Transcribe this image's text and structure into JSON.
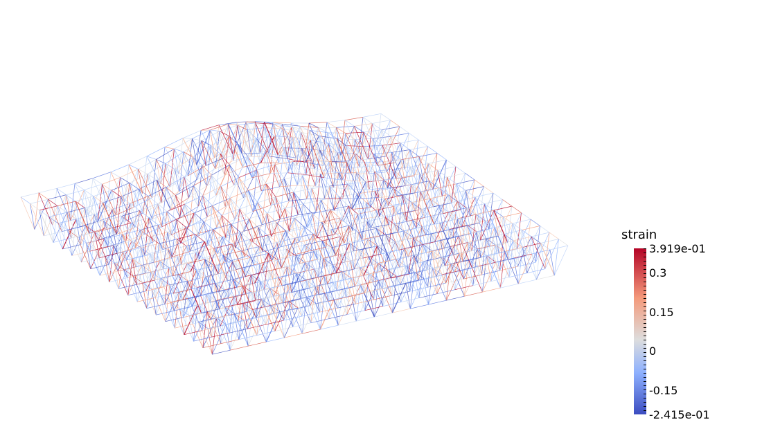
{
  "legend": {
    "title": "strain",
    "max_label": "3.919e-01",
    "min_label": "-2.415e-01",
    "ticks": [
      {
        "label": "0.3",
        "value": 0.3
      },
      {
        "label": "0.15",
        "value": 0.15
      },
      {
        "label": "0",
        "value": 0
      },
      {
        "label": "-0.15",
        "value": -0.15
      }
    ],
    "range": [
      -0.2415,
      0.3919
    ],
    "colormap": [
      "#3b4cc0",
      "#8db0fe",
      "#dddddd",
      "#f49a7b",
      "#b40426"
    ]
  },
  "scene": {
    "background": "#ffffff",
    "object": "wireframe truss lattice colored by strain"
  }
}
